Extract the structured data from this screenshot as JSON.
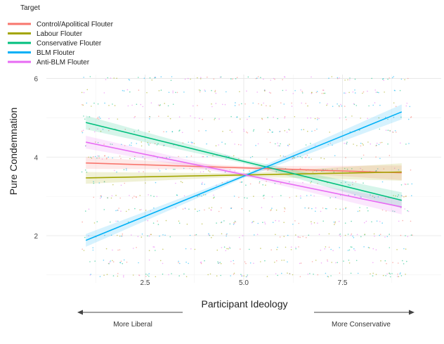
{
  "chart_data": {
    "type": "scatter",
    "xlabel": "Participant Ideology",
    "ylabel": "Pure Condemnation",
    "xlim": [
      0,
      10
    ],
    "ylim": [
      0.8,
      6.1
    ],
    "x_ticks": [
      2.5,
      5.0,
      7.5
    ],
    "x_tick_labels": [
      "2.5",
      "5.0",
      "7.5"
    ],
    "y_ticks": [
      2,
      4,
      6
    ],
    "y_tick_labels": [
      "2",
      "4",
      "6"
    ],
    "grid": true,
    "legend": {
      "title": "Target",
      "position": "top-left"
    },
    "annotations": {
      "left_arrow_label": "More Liberal",
      "right_arrow_label": "More Conservative"
    },
    "series": [
      {
        "name": "Control/Apolitical Flouter",
        "color": "#F8766D",
        "fit_x": [
          1.0,
          9.0
        ],
        "fit_y": [
          3.85,
          3.6
        ],
        "ci_width": [
          0.12,
          0.16
        ]
      },
      {
        "name": "Labour Flouter",
        "color": "#A3A500",
        "fit_x": [
          1.0,
          9.0
        ],
        "fit_y": [
          3.47,
          3.62
        ],
        "ci_width": [
          0.12,
          0.2
        ]
      },
      {
        "name": "Conservative Flouter",
        "color": "#00BF7D",
        "fit_x": [
          1.0,
          9.0
        ],
        "fit_y": [
          4.88,
          2.9
        ],
        "ci_width": [
          0.14,
          0.17
        ]
      },
      {
        "name": "BLM Flouter",
        "color": "#00B0F6",
        "fit_x": [
          1.0,
          9.0
        ],
        "fit_y": [
          1.88,
          5.15
        ],
        "ci_width": [
          0.13,
          0.16
        ]
      },
      {
        "name": "Anti-BLM Flouter",
        "color": "#E76BF3",
        "fit_x": [
          1.0,
          9.0
        ],
        "fit_y": [
          4.38,
          2.73
        ],
        "ci_width": [
          0.13,
          0.16
        ]
      }
    ],
    "jitter_points_note_free": true
  }
}
